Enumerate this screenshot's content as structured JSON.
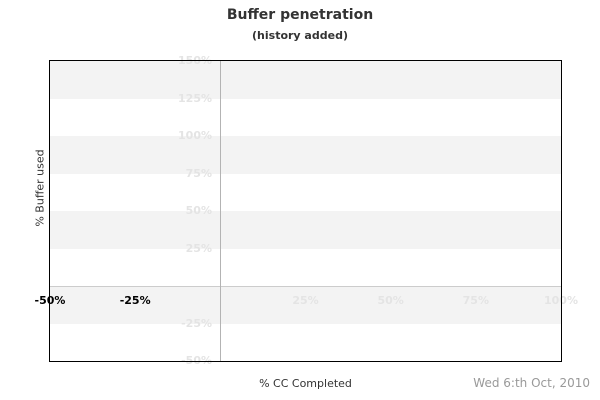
{
  "page": {
    "title": "Buffer penetration",
    "subtitle": "(history added)",
    "date_label": "Wed 6:th Oct, 2010"
  },
  "chart_data": {
    "type": "line",
    "title": "Buffer penetration",
    "subtitle": "(history added)",
    "xlabel": "% CC Completed",
    "ylabel": "% Buffer used",
    "xlim": [
      -50,
      100
    ],
    "ylim": [
      -50,
      150
    ],
    "legend": "none",
    "grid": "alternating-horizontal-bands",
    "series": [],
    "x_ticks": [
      {
        "value": -50,
        "label": "-50%",
        "emphasized": true
      },
      {
        "value": -25,
        "label": "-25%",
        "emphasized": true
      },
      {
        "value": 25,
        "label": "25%",
        "emphasized": false
      },
      {
        "value": 50,
        "label": "50%",
        "emphasized": false
      },
      {
        "value": 75,
        "label": "75%",
        "emphasized": false
      },
      {
        "value": 100,
        "label": "100%",
        "emphasized": false
      }
    ],
    "y_ticks": [
      {
        "value": 150,
        "label": "150%",
        "emphasized": false
      },
      {
        "value": 125,
        "label": "125%",
        "emphasized": false
      },
      {
        "value": 100,
        "label": "100%",
        "emphasized": false
      },
      {
        "value": 75,
        "label": "75%",
        "emphasized": false
      },
      {
        "value": 50,
        "label": "50%",
        "emphasized": false
      },
      {
        "value": 25,
        "label": "25%",
        "emphasized": false
      },
      {
        "value": -25,
        "label": "-25%",
        "emphasized": false
      },
      {
        "value": -50,
        "label": "-50%",
        "emphasized": false
      }
    ],
    "bands": [
      [
        150,
        125
      ],
      [
        100,
        75
      ],
      [
        50,
        25
      ],
      [
        0,
        -25
      ]
    ],
    "axis_lines": {
      "vertical_at_x": 0,
      "horizontal_at_y": 0
    },
    "colors": {
      "band": "#f3f3f3",
      "frame": "#000000",
      "tick_light": "#e4e4e4",
      "tick_dark": "#000000",
      "zero_line_horizontal": "#cccccc",
      "zero_line_vertical": "#b3b3b3",
      "title": "#333333",
      "axis_label": "#333333",
      "date": "#999999"
    }
  }
}
